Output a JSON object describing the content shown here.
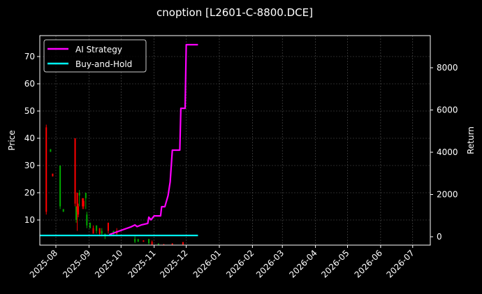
{
  "chart_data": {
    "type": "line",
    "title": "cnoption [L2601-C-8800.DCE]",
    "xlabel": "",
    "ylabel": "Price",
    "ylabel_right": "Return",
    "ylim": [
      0.5,
      77
    ],
    "ylim_right": [
      -350,
      9500
    ],
    "grid": true,
    "legend_position": "upper left",
    "x_tick_labels": [
      "2025-08",
      "2025-09",
      "2025-10",
      "2025-11",
      "2025-12",
      "2026-01",
      "2026-02",
      "2026-03",
      "2026-04",
      "2026-05",
      "2026-06",
      "2026-07"
    ],
    "y_ticks_left": [
      10,
      20,
      30,
      40,
      50,
      60,
      70
    ],
    "y_ticks_right": [
      0,
      2000,
      4000,
      6000,
      8000
    ],
    "legend": [
      "AI Strategy",
      "Buy-and-Hold"
    ],
    "colors": {
      "ai_strategy": "#ff00ff",
      "buy_and_hold": "#00ffff",
      "up": "#00aa00",
      "down": "#ff0000",
      "background": "#000000",
      "grid": "#555555"
    },
    "series": [
      {
        "name": "AI Strategy",
        "axis": "right",
        "x": [
          "2025-09-20",
          "2025-10-01",
          "2025-10-10",
          "2025-10-14",
          "2025-10-16",
          "2025-10-20",
          "2025-10-26",
          "2025-10-27",
          "2025-10-29",
          "2025-11-01",
          "2025-11-07",
          "2025-11-08",
          "2025-11-11",
          "2025-11-14",
          "2025-11-16",
          "2025-11-18",
          "2025-11-20",
          "2025-11-25",
          "2025-11-26",
          "2025-11-30",
          "2025-12-01",
          "2025-12-12"
        ],
        "values": [
          100,
          300,
          460,
          560,
          480,
          560,
          630,
          925,
          800,
          990,
          990,
          1420,
          1420,
          1950,
          2600,
          4100,
          4100,
          4100,
          6080,
          6080,
          9090,
          9090
        ]
      },
      {
        "name": "Buy-and-Hold",
        "axis": "right",
        "x": [
          "2025-07-17",
          "2025-12-12"
        ],
        "values": [
          60,
          60
        ]
      }
    ],
    "candles": [
      {
        "date": "2025-07-23",
        "open": 44,
        "close": 13,
        "high": 45,
        "low": 12,
        "dir": "down"
      },
      {
        "date": "2025-07-27",
        "open": 36,
        "close": 35,
        "high": 36,
        "low": 35,
        "dir": "up"
      },
      {
        "date": "2025-07-29",
        "open": 27,
        "close": 26,
        "high": 27,
        "low": 26,
        "dir": "down"
      },
      {
        "date": "2025-08-05",
        "open": 30,
        "close": 15,
        "high": 30,
        "low": 14,
        "dir": "up"
      },
      {
        "date": "2025-08-08",
        "open": 14,
        "close": 13,
        "high": 14,
        "low": 13,
        "dir": "up"
      },
      {
        "date": "2025-08-19",
        "open": 40,
        "close": 16,
        "high": 40,
        "low": 15,
        "dir": "down"
      },
      {
        "date": "2025-08-20",
        "open": 15,
        "close": 10,
        "high": 15,
        "low": 9,
        "dir": "up"
      },
      {
        "date": "2025-08-21",
        "open": 20,
        "close": 13,
        "high": 20,
        "low": 6,
        "dir": "down"
      },
      {
        "date": "2025-08-22",
        "open": 15,
        "close": 12,
        "high": 16,
        "low": 11,
        "dir": "down"
      },
      {
        "date": "2025-08-23",
        "open": 19,
        "close": 20,
        "high": 21,
        "low": 15,
        "dir": "up"
      },
      {
        "date": "2025-08-26",
        "open": 18,
        "close": 15,
        "high": 18,
        "low": 14,
        "dir": "down"
      },
      {
        "date": "2025-08-27",
        "open": 17,
        "close": 15,
        "high": 18,
        "low": 14,
        "dir": "down"
      },
      {
        "date": "2025-08-29",
        "open": 18,
        "close": 20,
        "high": 20,
        "low": 14,
        "dir": "up"
      },
      {
        "date": "2025-08-30",
        "open": 12,
        "close": 8,
        "high": 13,
        "low": 7,
        "dir": "up"
      },
      {
        "date": "2025-09-02",
        "open": 9,
        "close": 7,
        "high": 9,
        "low": 7,
        "dir": "up"
      },
      {
        "date": "2025-09-05",
        "open": 7,
        "close": 5,
        "high": 8,
        "low": 5,
        "dir": "down"
      },
      {
        "date": "2025-09-08",
        "open": 8,
        "close": 6,
        "high": 8,
        "low": 5,
        "dir": "up"
      },
      {
        "date": "2025-09-11",
        "open": 7,
        "close": 5,
        "high": 7,
        "low": 4,
        "dir": "down"
      },
      {
        "date": "2025-09-13",
        "open": 6,
        "close": 5,
        "high": 7,
        "low": 4,
        "dir": "up"
      },
      {
        "date": "2025-09-16",
        "open": 5,
        "close": 4,
        "high": 5,
        "low": 3,
        "dir": "up"
      },
      {
        "date": "2025-09-19",
        "open": 9,
        "close": 6,
        "high": 9,
        "low": 5,
        "dir": "down"
      },
      {
        "date": "2025-09-24",
        "open": 6,
        "close": 5,
        "high": 6,
        "low": 4,
        "dir": "up"
      },
      {
        "date": "2025-09-27",
        "open": 6,
        "close": 5,
        "high": 7,
        "low": 4,
        "dir": "down"
      },
      {
        "date": "2025-10-14",
        "open": 3,
        "close": 2,
        "high": 4,
        "low": 1.5,
        "dir": "up"
      },
      {
        "date": "2025-10-17",
        "open": 3,
        "close": 2,
        "high": 3,
        "low": 2,
        "dir": "up"
      },
      {
        "date": "2025-10-22",
        "open": 2.5,
        "close": 2,
        "high": 2.5,
        "low": 2,
        "dir": "down"
      },
      {
        "date": "2025-10-27",
        "open": 3,
        "close": 1.5,
        "high": 3,
        "low": 1,
        "dir": "up"
      },
      {
        "date": "2025-10-30",
        "open": 2,
        "close": 1,
        "high": 2.5,
        "low": 0.8,
        "dir": "down"
      },
      {
        "date": "2025-11-05",
        "open": 1.2,
        "close": 1,
        "high": 1.5,
        "low": 0.8,
        "dir": "up"
      },
      {
        "date": "2025-11-10",
        "open": 1,
        "close": 0.8,
        "high": 1.2,
        "low": 0.7,
        "dir": "down"
      },
      {
        "date": "2025-11-18",
        "open": 1.3,
        "close": 1,
        "high": 1.5,
        "low": 0.8,
        "dir": "down"
      },
      {
        "date": "2025-11-28",
        "open": 1.8,
        "close": 1,
        "high": 2,
        "low": 0.8,
        "dir": "down"
      }
    ]
  }
}
